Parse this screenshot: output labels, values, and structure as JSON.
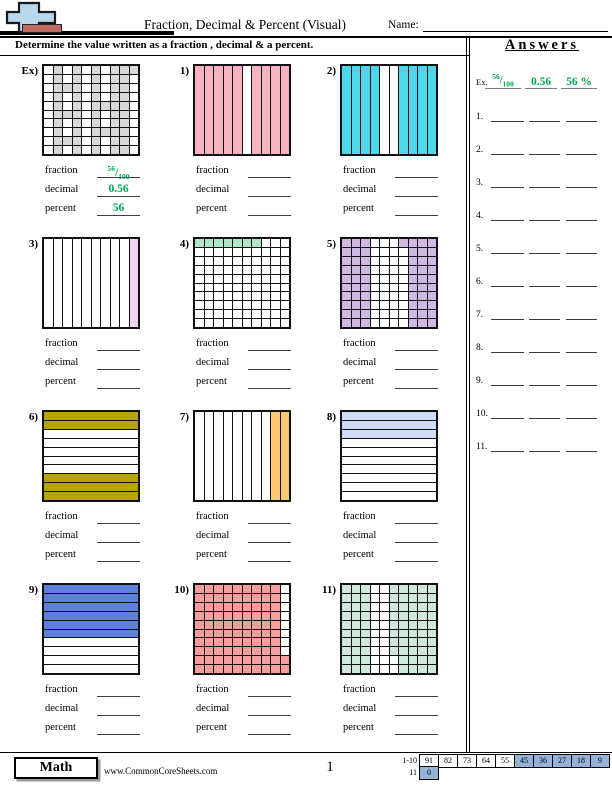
{
  "header": {
    "title": "Fraction, Decimal & Percent (Visual)",
    "name_label": "Name:"
  },
  "instruction": "Determine the value written as a fraction , decimal & a percent.",
  "labels": {
    "fraction": "fraction",
    "decimal": "decimal",
    "percent": "percent"
  },
  "answers_panel": {
    "title": "Answers",
    "ex": {
      "label": "Ex.",
      "fraction_numerator": "56",
      "fraction_denominator": "100",
      "decimal": "0.56",
      "percent": "56 %"
    },
    "rows": [
      {
        "num": "1."
      },
      {
        "num": "2."
      },
      {
        "num": "3."
      },
      {
        "num": "4."
      },
      {
        "num": "5."
      },
      {
        "num": "6."
      },
      {
        "num": "7."
      },
      {
        "num": "8."
      },
      {
        "num": "9."
      },
      {
        "num": "10."
      },
      {
        "num": "11."
      }
    ]
  },
  "problems": [
    {
      "num": "Ex)",
      "type": "grid",
      "color": "#d8d8d8",
      "pattern": [
        "0101010111",
        "0101010110",
        "0111010110",
        "0101010110",
        "0101011110",
        "0111010110",
        "0101010110",
        "0101011110",
        "0111010110",
        "0101010110"
      ],
      "answers": {
        "fraction_numerator": "56",
        "fraction_denominator": "100",
        "decimal": "0.56",
        "percent": "56"
      }
    },
    {
      "num": "1)",
      "type": "vstrip",
      "color": "#f7b3c2",
      "strips": "1111101111"
    },
    {
      "num": "2)",
      "type": "vstrip",
      "color": "#4cd8e8",
      "strips": "1111001111"
    },
    {
      "num": "3)",
      "type": "vstrip",
      "color": "#f0d4ee",
      "strips": "0000000001"
    },
    {
      "num": "4)",
      "type": "grid",
      "color": "#b2e5c8",
      "pattern": [
        "1111111000",
        "0000000000",
        "0000000000",
        "0000000000",
        "0000000000",
        "0000000000",
        "0000000000",
        "0000000000",
        "0000000000",
        "0000000000"
      ]
    },
    {
      "num": "5)",
      "type": "grid",
      "color": "#cdb9e2",
      "pattern": [
        "1110001111",
        "1110000111",
        "1110000111",
        "1110000111",
        "1110000111",
        "1110000111",
        "1110000111",
        "1110000111",
        "1110000111",
        "1110000111"
      ]
    },
    {
      "num": "6)",
      "type": "hstrip",
      "color": "#b5a402",
      "strips": "1100000111"
    },
    {
      "num": "7)",
      "type": "vstrip",
      "color": "#fbc870",
      "strips": "0000000011"
    },
    {
      "num": "8)",
      "type": "hstrip",
      "color": "#cedcf7",
      "strips": "1110000000"
    },
    {
      "num": "9)",
      "type": "hstrip",
      "color": "#5d80da",
      "strips": "1111110000"
    },
    {
      "num": "10)",
      "type": "grid",
      "color": "#f69d9d",
      "pattern": [
        "1111111110",
        "1111111110",
        "1111111110",
        "1111111110",
        "1111111110",
        "1111111110",
        "1111111110",
        "1111111110",
        "1111111111",
        "1111111111"
      ]
    },
    {
      "num": "11)",
      "type": "grid",
      "color": "#d0e8da",
      "pattern": [
        "1110011111",
        "1110011111",
        "1110011111",
        "1110011111",
        "1110011111",
        "1110011111",
        "1110011111",
        "1110011111",
        "1110001111",
        "1110001111"
      ]
    }
  ],
  "footer": {
    "subject": "Math",
    "website": "www.CommonCoreSheets.com",
    "page_number": "1",
    "highlight_color": "#95b3d7",
    "score_rows": [
      {
        "label": "1-10",
        "cells": [
          {
            "v": "91",
            "hl": false
          },
          {
            "v": "82",
            "hl": false
          },
          {
            "v": "73",
            "hl": false
          },
          {
            "v": "64",
            "hl": false
          },
          {
            "v": "55",
            "hl": false
          },
          {
            "v": "45",
            "hl": true
          },
          {
            "v": "36",
            "hl": true
          },
          {
            "v": "27",
            "hl": true
          },
          {
            "v": "18",
            "hl": true
          },
          {
            "v": "9",
            "hl": true
          }
        ]
      },
      {
        "label": "11",
        "cells": [
          {
            "v": "0",
            "hl": true
          }
        ]
      }
    ]
  },
  "colors": {
    "answer_green": "#00a651",
    "logo_blue": "#b9d8ee",
    "logo_red": "#bf6a60"
  }
}
